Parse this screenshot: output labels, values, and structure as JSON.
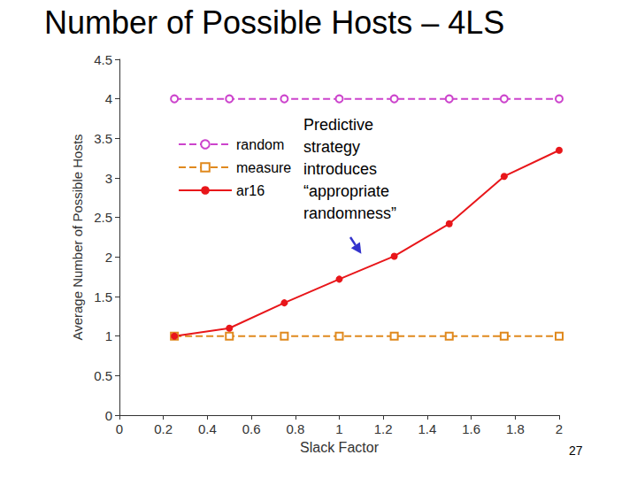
{
  "chart_data": {
    "type": "line",
    "title": "Number of Possible Hosts – 4LS",
    "xlabel": "Slack Factor",
    "ylabel": "Average Number of Possible Hosts",
    "x": [
      0.25,
      0.5,
      0.75,
      1,
      1.25,
      1.5,
      1.75,
      2
    ],
    "series": [
      {
        "name": "random",
        "color": "#cc44cc",
        "marker": "circle_open",
        "line_style": "dashed",
        "values": [
          4,
          4,
          4,
          4,
          4,
          4,
          4,
          4
        ]
      },
      {
        "name": "measure",
        "color": "#e0891e",
        "marker": "square_open",
        "line_style": "dashed",
        "values": [
          1,
          1,
          1,
          1,
          1,
          1,
          1,
          1
        ]
      },
      {
        "name": "ar16",
        "color": "#e8161a",
        "marker": "circle",
        "line_style": "solid",
        "values": [
          1,
          1.1,
          1.42,
          1.72,
          2.01,
          2.42,
          3.02,
          3.35
        ]
      }
    ],
    "xlim": [
      0,
      2
    ],
    "xticks": [
      0,
      0.2,
      0.4,
      0.6,
      0.8,
      1,
      1.2,
      1.4,
      1.6,
      1.8,
      2
    ],
    "ylim": [
      0,
      4.5
    ],
    "yticks": [
      0,
      0.5,
      1,
      1.5,
      2,
      2.5,
      3,
      3.5,
      4,
      4.5
    ],
    "grid": false,
    "legend": "upper left",
    "annotations": [
      {
        "text": "Predictive\nstrategy\nintroduces\n“appropriate\nrandomness”",
        "x": 1.25,
        "y": 2.01
      }
    ],
    "footer": "27"
  }
}
